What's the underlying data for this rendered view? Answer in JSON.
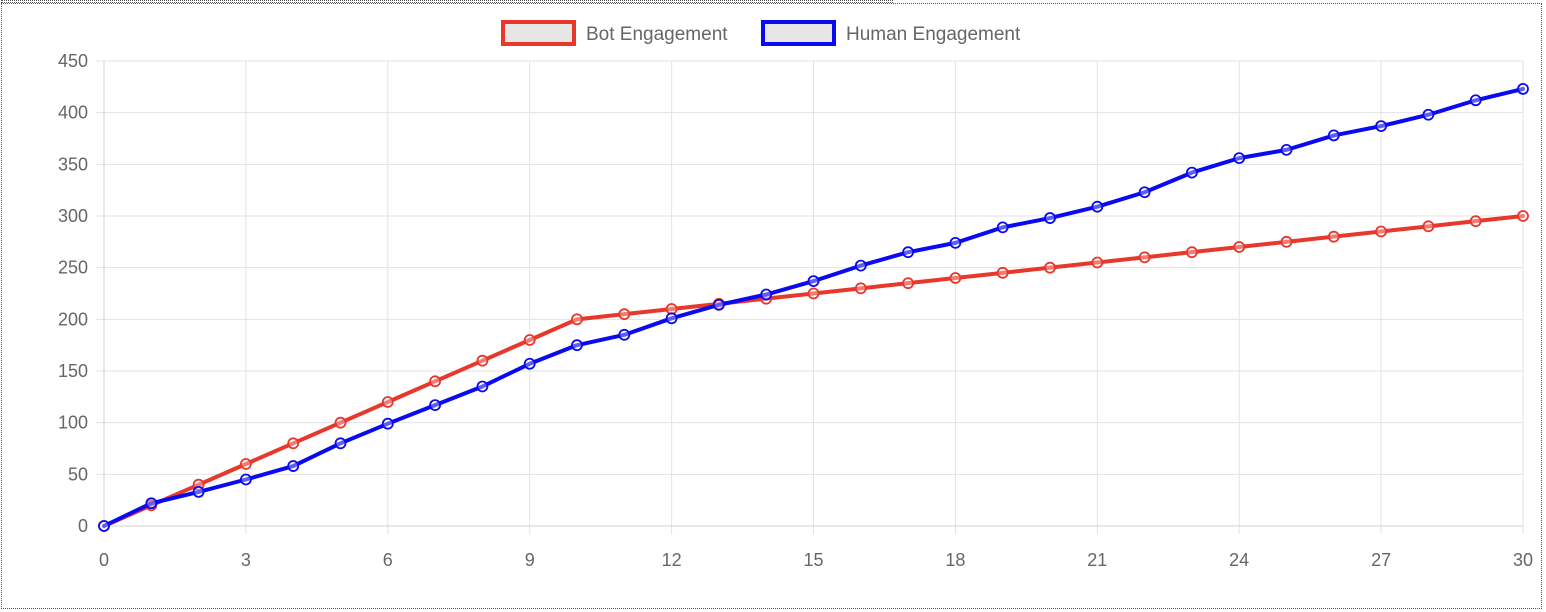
{
  "chart_data": {
    "type": "line",
    "x": [
      0,
      1,
      2,
      3,
      4,
      5,
      6,
      7,
      8,
      9,
      10,
      11,
      12,
      13,
      14,
      15,
      16,
      17,
      18,
      19,
      20,
      21,
      22,
      23,
      24,
      25,
      26,
      27,
      28,
      29,
      30
    ],
    "series": [
      {
        "name": "Bot Engagement",
        "color": "#e8372b",
        "values": [
          0,
          20,
          40,
          60,
          80,
          100,
          120,
          140,
          160,
          180,
          200,
          205,
          210,
          215,
          220,
          225,
          230,
          235,
          240,
          245,
          250,
          255,
          260,
          265,
          270,
          275,
          280,
          285,
          290,
          295,
          300
        ]
      },
      {
        "name": "Human Engagement",
        "color": "#0a0af0",
        "values": [
          0,
          22,
          33,
          45,
          58,
          80,
          99,
          117,
          135,
          157,
          175,
          185,
          201,
          214,
          224,
          237,
          252,
          265,
          274,
          289,
          298,
          309,
          323,
          342,
          356,
          364,
          378,
          387,
          398,
          412,
          423
        ]
      }
    ],
    "xticks": [
      0,
      3,
      6,
      9,
      12,
      15,
      18,
      21,
      24,
      27,
      30
    ],
    "yticks": [
      0,
      50,
      100,
      150,
      200,
      250,
      300,
      350,
      400,
      450
    ],
    "xlim": [
      0,
      30
    ],
    "ylim": [
      0,
      450
    ],
    "grid": true,
    "legend_position": "top",
    "title": "",
    "xlabel": "",
    "ylabel": ""
  }
}
